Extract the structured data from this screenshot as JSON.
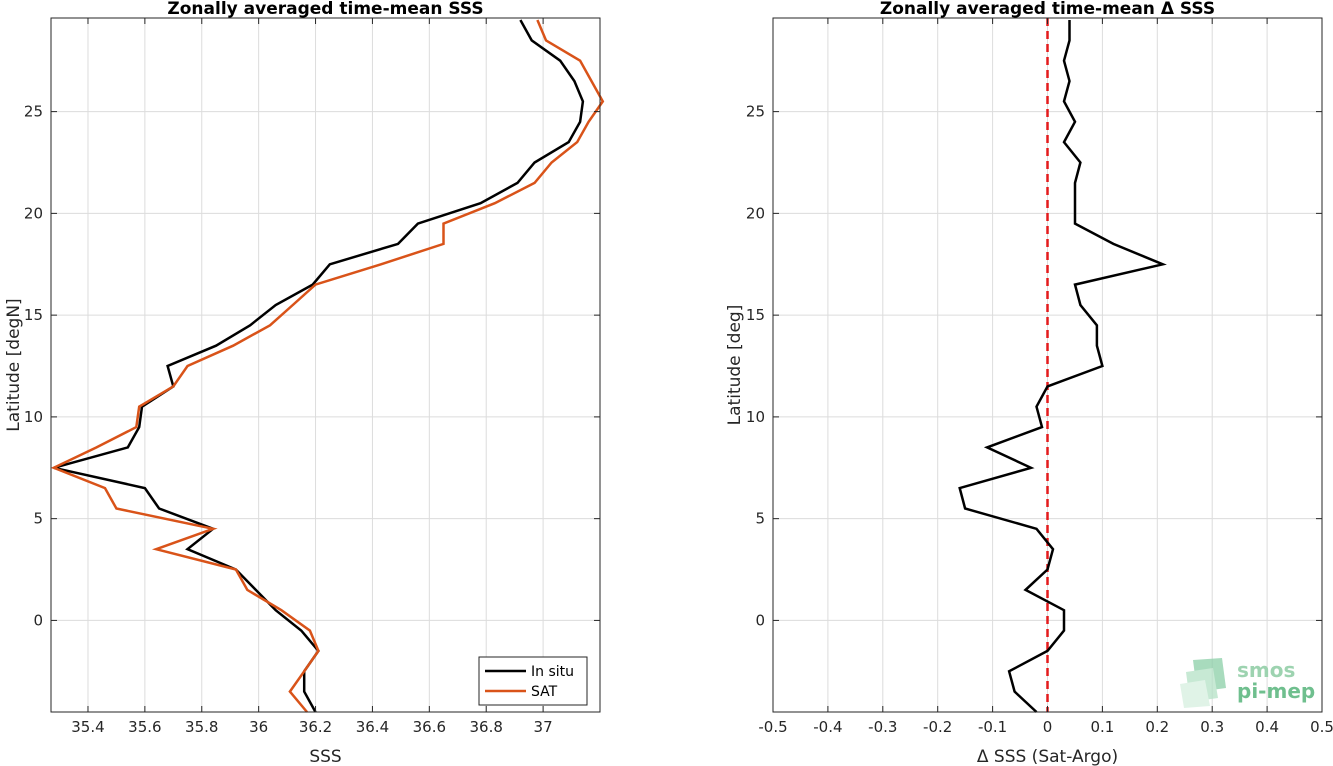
{
  "chart_data": [
    {
      "type": "line",
      "title": "Zonally averaged time-mean SSS",
      "xlabel": "SSS",
      "ylabel": "Latitude [degN]",
      "xlim": [
        35.27,
        37.2
      ],
      "ylim": [
        -4.5,
        29.6
      ],
      "xticks": [
        35.4,
        35.6,
        35.8,
        36,
        36.2,
        36.4,
        36.6,
        36.8,
        37
      ],
      "xtick_labels": [
        "35.4",
        "35.6",
        "35.8",
        "36",
        "36.2",
        "36.4",
        "36.6",
        "36.8",
        "37"
      ],
      "yticks": [
        0,
        5,
        10,
        15,
        20,
        25
      ],
      "ytick_labels": [
        "0",
        "5",
        "10",
        "15",
        "20",
        "25"
      ],
      "grid": true,
      "legend": "bottom-right",
      "series": [
        {
          "name": "In situ",
          "color": "#000000",
          "points": [
            [
              36.2,
              -4.5
            ],
            [
              36.16,
              -3.5
            ],
            [
              36.16,
              -2.5
            ],
            [
              36.21,
              -1.5
            ],
            [
              36.15,
              -0.5
            ],
            [
              36.06,
              0.5
            ],
            [
              35.99,
              1.5
            ],
            [
              35.92,
              2.5
            ],
            [
              35.75,
              3.5
            ],
            [
              35.84,
              4.5
            ],
            [
              35.65,
              5.5
            ],
            [
              35.6,
              6.5
            ],
            [
              35.28,
              7.5
            ],
            [
              35.54,
              8.5
            ],
            [
              35.58,
              9.5
            ],
            [
              35.59,
              10.5
            ],
            [
              35.7,
              11.5
            ],
            [
              35.68,
              12.5
            ],
            [
              35.85,
              13.5
            ],
            [
              35.97,
              14.5
            ],
            [
              36.06,
              15.5
            ],
            [
              36.19,
              16.5
            ],
            [
              36.25,
              17.5
            ],
            [
              36.49,
              18.5
            ],
            [
              36.56,
              19.5
            ],
            [
              36.78,
              20.5
            ],
            [
              36.91,
              21.5
            ],
            [
              36.97,
              22.5
            ],
            [
              37.09,
              23.5
            ],
            [
              37.13,
              24.5
            ],
            [
              37.14,
              25.5
            ],
            [
              37.11,
              26.5
            ],
            [
              37.06,
              27.5
            ],
            [
              36.96,
              28.5
            ],
            [
              36.92,
              29.5
            ]
          ]
        },
        {
          "name": "SAT",
          "color": "#d95319",
          "points": [
            [
              36.17,
              -4.5
            ],
            [
              36.11,
              -3.5
            ],
            [
              36.16,
              -2.5
            ],
            [
              36.21,
              -1.5
            ],
            [
              36.18,
              -0.5
            ],
            [
              36.08,
              0.5
            ],
            [
              35.96,
              1.5
            ],
            [
              35.92,
              2.5
            ],
            [
              35.64,
              3.5
            ],
            [
              35.84,
              4.5
            ],
            [
              35.5,
              5.5
            ],
            [
              35.46,
              6.5
            ],
            [
              35.28,
              7.5
            ],
            [
              35.43,
              8.5
            ],
            [
              35.57,
              9.5
            ],
            [
              35.58,
              10.5
            ],
            [
              35.7,
              11.5
            ],
            [
              35.75,
              12.5
            ],
            [
              35.91,
              13.5
            ],
            [
              36.04,
              14.5
            ],
            [
              36.12,
              15.5
            ],
            [
              36.2,
              16.5
            ],
            [
              36.43,
              17.5
            ],
            [
              36.65,
              18.5
            ],
            [
              36.65,
              19.5
            ],
            [
              36.83,
              20.5
            ],
            [
              36.97,
              21.5
            ],
            [
              37.03,
              22.5
            ],
            [
              37.12,
              23.5
            ],
            [
              37.16,
              24.5
            ],
            [
              37.21,
              25.5
            ],
            [
              37.17,
              26.5
            ],
            [
              37.13,
              27.5
            ],
            [
              37.01,
              28.5
            ],
            [
              36.98,
              29.5
            ]
          ]
        }
      ]
    },
    {
      "type": "line",
      "title": "Zonally averaged time-mean Δ SSS",
      "xlabel": "Δ SSS (Sat-Argo)",
      "ylabel": "Latitude [deg]",
      "xlim": [
        -0.5,
        0.5
      ],
      "ylim": [
        -4.5,
        29.6
      ],
      "xticks": [
        -0.5,
        -0.4,
        -0.3,
        -0.2,
        -0.1,
        0,
        0.1,
        0.2,
        0.3,
        0.4,
        0.5
      ],
      "xtick_labels": [
        "-0.5",
        "-0.4",
        "-0.3",
        "-0.2",
        "-0.1",
        "0",
        "0.1",
        "0.2",
        "0.3",
        "0.4",
        "0.5"
      ],
      "yticks": [
        0,
        5,
        10,
        15,
        20,
        25
      ],
      "ytick_labels": [
        "0",
        "5",
        "10",
        "15",
        "20",
        "25"
      ],
      "grid": true,
      "reference_line": {
        "x": 0,
        "color": "#e41a1c",
        "style": "dashed"
      },
      "series": [
        {
          "color": "#000000",
          "points": [
            [
              -0.02,
              -4.5
            ],
            [
              -0.06,
              -3.5
            ],
            [
              -0.07,
              -2.5
            ],
            [
              0.0,
              -1.5
            ],
            [
              0.03,
              -0.5
            ],
            [
              0.03,
              0.5
            ],
            [
              -0.04,
              1.5
            ],
            [
              0.0,
              2.5
            ],
            [
              0.01,
              3.5
            ],
            [
              -0.02,
              4.5
            ],
            [
              -0.15,
              5.5
            ],
            [
              -0.16,
              6.5
            ],
            [
              -0.03,
              7.5
            ],
            [
              -0.11,
              8.5
            ],
            [
              -0.01,
              9.5
            ],
            [
              -0.02,
              10.5
            ],
            [
              0.0,
              11.5
            ],
            [
              0.1,
              12.5
            ],
            [
              0.09,
              13.5
            ],
            [
              0.09,
              14.5
            ],
            [
              0.06,
              15.5
            ],
            [
              0.05,
              16.5
            ],
            [
              0.21,
              17.5
            ],
            [
              0.12,
              18.5
            ],
            [
              0.05,
              19.5
            ],
            [
              0.05,
              20.5
            ],
            [
              0.05,
              21.5
            ],
            [
              0.06,
              22.5
            ],
            [
              0.03,
              23.5
            ],
            [
              0.05,
              24.5
            ],
            [
              0.03,
              25.5
            ],
            [
              0.04,
              26.5
            ],
            [
              0.03,
              27.5
            ],
            [
              0.04,
              28.5
            ],
            [
              0.04,
              29.5
            ]
          ]
        }
      ]
    }
  ],
  "legend": {
    "entries": [
      "In situ",
      "SAT"
    ]
  },
  "logo": {
    "line1": "smos",
    "line2": "pi-mep"
  }
}
